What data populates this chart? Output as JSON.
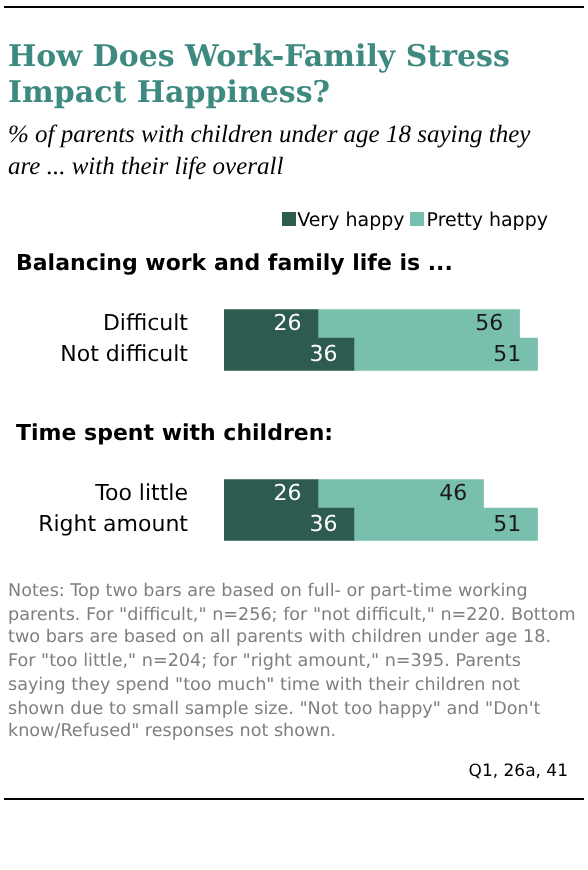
{
  "chart_data": [
    {
      "type": "bar",
      "orientation": "horizontal",
      "stacked": true,
      "title": "How Does Work-Family Stress Impact Happiness?",
      "subtitle": "% of parents with children under age 18 saying they are ... with their life overall",
      "annotations": [
        "Balancing work and family life is ..."
      ],
      "categories": [
        "Difficult",
        "Not difficult"
      ],
      "tick_labels": "y",
      "legend": "top right",
      "data_labels": true,
      "series": [
        {
          "name": "Very happy",
          "color": "#2d5b4f",
          "values": [
            26,
            36
          ]
        },
        {
          "name": "Pretty happy",
          "color": "#79bfae",
          "values": [
            56,
            51
          ]
        }
      ]
    },
    {
      "type": "bar",
      "orientation": "horizontal",
      "stacked": true,
      "title": "Time spent with children:",
      "annotations": [
        "Notes: Top two bars are based on full- or part-time working parents. For \"difficult,\" n=256; for \"not difficult,\" n=220. Bottom two bars are based on all parents with children under age 18. For \"too little,\" n=204; for \"right amount,\" n=395. Parents saying they spend \"too much\" time with their children not shown due to small sample size. \"Not too happy\" and \"Don't know/Refused\" responses not shown.",
        "Q1, 26a, 41"
      ],
      "categories": [
        "Too little",
        "Right amount"
      ],
      "tick_labels": "y",
      "data_labels": true,
      "series": [
        {
          "color": "#2d5b4f",
          "values": [
            26,
            36
          ]
        },
        {
          "color": "#79bfae",
          "values": [
            46,
            51
          ]
        }
      ]
    }
  ]
}
